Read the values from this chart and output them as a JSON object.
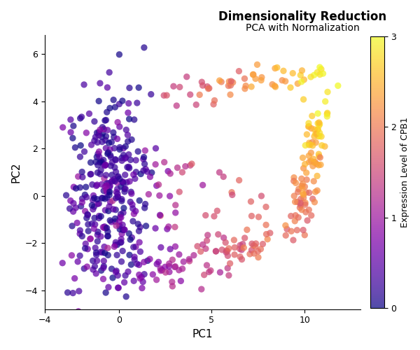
{
  "title": "Dimensionality Reduction",
  "subtitle": "PCA with Normalization",
  "xlabel": "PC1",
  "ylabel": "PC2",
  "colorbar_label": "Expression Level of CPB1",
  "xlim": [
    -3.5,
    13
  ],
  "ylim": [
    -4.8,
    6.8
  ],
  "colormap": "plasma",
  "vmin": 0,
  "vmax": 3,
  "dot_size": 45,
  "dot_alpha": 0.72,
  "seed": 7,
  "background_color": "#ffffff",
  "title_fontsize": 12,
  "subtitle_fontsize": 10,
  "axis_label_fontsize": 11,
  "tick_fontsize": 9
}
